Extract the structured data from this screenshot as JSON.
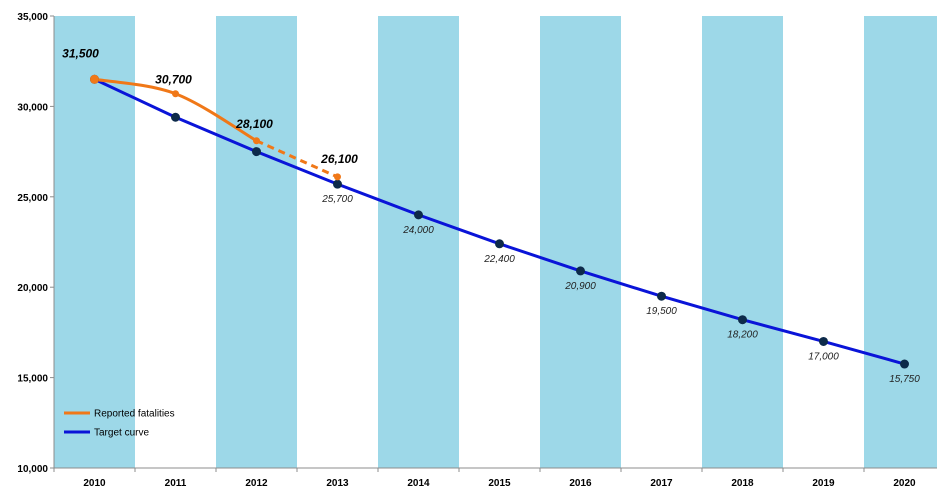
{
  "chart_data": {
    "type": "line",
    "categories": [
      "2010",
      "2011",
      "2012",
      "2013",
      "2014",
      "2015",
      "2016",
      "2017",
      "2018",
      "2019",
      "2020"
    ],
    "ylim": [
      10000,
      35000
    ],
    "yticks": [
      10000,
      15000,
      20000,
      25000,
      30000,
      35000
    ],
    "ytick_labels": [
      "10,000",
      "15,000",
      "20,000",
      "25,000",
      "30,000",
      "35,000"
    ],
    "shaded_columns": [
      "2010",
      "2012",
      "2014",
      "2016",
      "2018",
      "2020"
    ],
    "series": [
      {
        "name": "Reported fatalities",
        "color": "#f07818",
        "points": [
          {
            "x": "2010",
            "y": 31500,
            "label": "31,500"
          },
          {
            "x": "2011",
            "y": 30700,
            "label": "30,700"
          },
          {
            "x": "2012",
            "y": 28100,
            "label": "28,100"
          },
          {
            "x": "2013",
            "y": 26100,
            "label": "26,100",
            "estimated": true
          }
        ]
      },
      {
        "name": "Target curve",
        "color": "#0a14d8",
        "points": [
          {
            "x": "2010",
            "y": 31500,
            "label": ""
          },
          {
            "x": "2011",
            "y": 29400,
            "label": ""
          },
          {
            "x": "2012",
            "y": 27500,
            "label": ""
          },
          {
            "x": "2013",
            "y": 25700,
            "label": "25,700"
          },
          {
            "x": "2014",
            "y": 24000,
            "label": "24,000"
          },
          {
            "x": "2015",
            "y": 22400,
            "label": "22,400"
          },
          {
            "x": "2016",
            "y": 20900,
            "label": "20,900"
          },
          {
            "x": "2017",
            "y": 19500,
            "label": "19,500"
          },
          {
            "x": "2018",
            "y": 18200,
            "label": "18,200"
          },
          {
            "x": "2019",
            "y": 17000,
            "label": "17,000"
          },
          {
            "x": "2020",
            "y": 15750,
            "label": "15,750"
          }
        ]
      }
    ],
    "legend": {
      "placement": "bottom-left",
      "entries": [
        "Reported fatalities",
        "Target curve"
      ]
    },
    "colors": {
      "shade": "#9dd8e8",
      "axis": "#8c8c8c"
    }
  }
}
